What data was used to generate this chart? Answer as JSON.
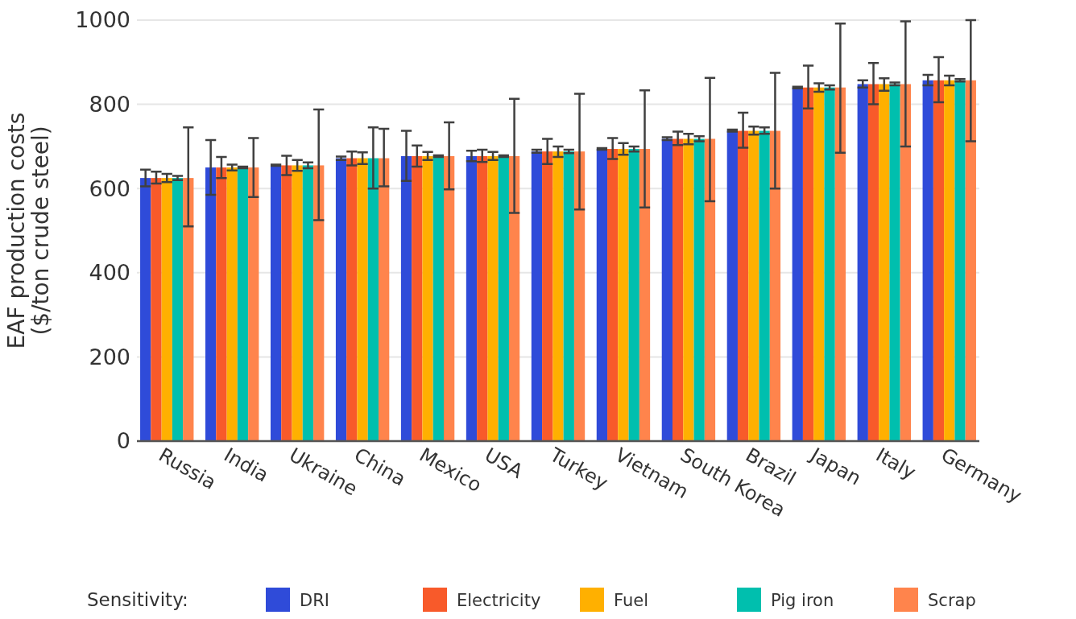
{
  "chart_data": {
    "type": "bar",
    "ylabel": "EAF production costs\n($/ton crude steel)",
    "legend_title": "Sensitivity:",
    "legend": "bottom",
    "grid": "y",
    "ylim": [
      0,
      1000
    ],
    "yticks": [
      0,
      200,
      400,
      600,
      800,
      1000
    ],
    "categories": [
      "Russia",
      "India",
      "Ukraine",
      "China",
      "Mexico",
      "USA",
      "Turkey",
      "Vietnam",
      "South Korea",
      "Brazil",
      "Japan",
      "Italy",
      "Germany"
    ],
    "series": [
      {
        "name": "DRI",
        "color": "#2f4bd9",
        "values": [
          625,
          650,
          655,
          672,
          677,
          677,
          688,
          694,
          718,
          737,
          840,
          848,
          857
        ],
        "errors": [
          [
            605,
            645
          ],
          [
            585,
            715
          ],
          [
            654,
            657
          ],
          [
            668,
            676
          ],
          [
            618,
            737
          ],
          [
            665,
            690
          ],
          [
            685,
            692
          ],
          [
            692,
            696
          ],
          [
            715,
            722
          ],
          [
            735,
            740
          ],
          [
            838,
            842
          ],
          [
            840,
            857
          ],
          [
            845,
            870
          ]
        ]
      },
      {
        "name": "Electricity",
        "color": "#f85a2a",
        "values": [
          625,
          650,
          655,
          672,
          677,
          677,
          688,
          694,
          718,
          737,
          840,
          848,
          857
        ],
        "errors": [
          [
            612,
            640
          ],
          [
            625,
            675
          ],
          [
            632,
            678
          ],
          [
            655,
            688
          ],
          [
            652,
            702
          ],
          [
            663,
            692
          ],
          [
            658,
            718
          ],
          [
            670,
            720
          ],
          [
            703,
            735
          ],
          [
            697,
            780
          ],
          [
            790,
            892
          ],
          [
            800,
            898
          ],
          [
            805,
            912
          ]
        ]
      },
      {
        "name": "Fuel",
        "color": "#ffb000",
        "values": [
          625,
          650,
          655,
          672,
          677,
          677,
          688,
          694,
          718,
          737,
          840,
          848,
          857
        ],
        "errors": [
          [
            615,
            635
          ],
          [
            643,
            657
          ],
          [
            642,
            668
          ],
          [
            658,
            686
          ],
          [
            668,
            687
          ],
          [
            668,
            687
          ],
          [
            675,
            700
          ],
          [
            680,
            708
          ],
          [
            705,
            730
          ],
          [
            728,
            747
          ],
          [
            830,
            850
          ],
          [
            832,
            862
          ],
          [
            845,
            868
          ]
        ]
      },
      {
        "name": "Pig iron",
        "color": "#00bfae",
        "values": [
          625,
          650,
          655,
          672,
          677,
          677,
          688,
          694,
          718,
          737,
          840,
          848,
          857
        ],
        "errors": [
          [
            620,
            630
          ],
          [
            648,
            652
          ],
          [
            648,
            662
          ],
          [
            600,
            745
          ],
          [
            675,
            679
          ],
          [
            675,
            679
          ],
          [
            684,
            692
          ],
          [
            688,
            700
          ],
          [
            712,
            724
          ],
          [
            730,
            745
          ],
          [
            835,
            845
          ],
          [
            845,
            852
          ],
          [
            854,
            860
          ]
        ]
      },
      {
        "name": "Scrap",
        "color": "#ff844c",
        "values": [
          625,
          650,
          655,
          672,
          677,
          677,
          688,
          694,
          718,
          737,
          840,
          848,
          857
        ],
        "errors": [
          [
            510,
            745
          ],
          [
            580,
            720
          ],
          [
            525,
            788
          ],
          [
            605,
            742
          ],
          [
            598,
            757
          ],
          [
            542,
            813
          ],
          [
            550,
            825
          ],
          [
            555,
            833
          ],
          [
            570,
            863
          ],
          [
            600,
            875
          ],
          [
            685,
            992
          ],
          [
            700,
            997
          ],
          [
            712,
            1000
          ]
        ]
      }
    ]
  }
}
